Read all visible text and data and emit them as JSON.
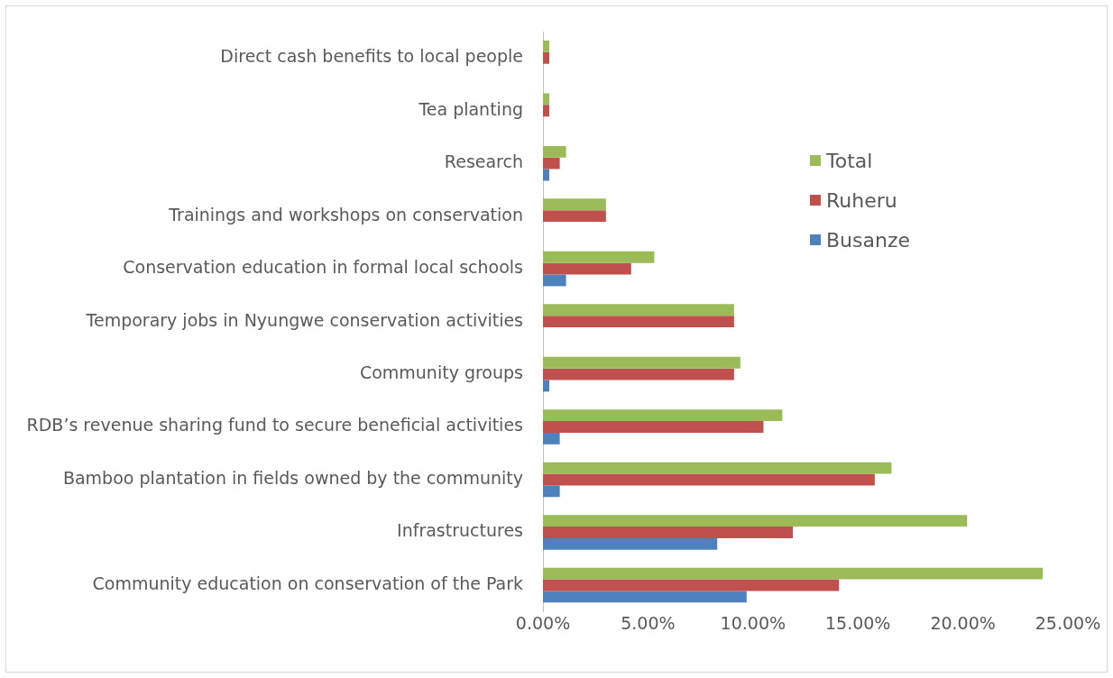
{
  "chart_data": {
    "type": "bar",
    "orientation": "horizontal",
    "categories": [
      "Direct cash benefits to local people",
      "Tea planting",
      "Research",
      "Trainings and workshops on conservation",
      "Conservation education in formal local schools",
      "Temporary jobs in Nyungwe conservation activities",
      "Community groups",
      "RDB’s revenue sharing fund to secure beneficial activities",
      "Bamboo plantation in fields owned by the community",
      "Infrastructures",
      "Community education on conservation of the Park"
    ],
    "series": [
      {
        "name": "Total",
        "color": "#9bbb59",
        "values": [
          0.3,
          0.3,
          1.1,
          3.0,
          5.3,
          9.1,
          9.4,
          11.4,
          16.6,
          20.2,
          23.8
        ]
      },
      {
        "name": "Ruheru",
        "color": "#c0504d",
        "values": [
          0.3,
          0.3,
          0.8,
          3.0,
          4.2,
          9.1,
          9.1,
          10.5,
          15.8,
          11.9,
          14.1
        ]
      },
      {
        "name": "Busanze",
        "color": "#4f81bd",
        "values": [
          0,
          0,
          0.3,
          0,
          1.1,
          0,
          0.3,
          0.8,
          0.8,
          8.3,
          9.7
        ]
      }
    ],
    "xlim": [
      0,
      25
    ],
    "xticks": [
      {
        "value": 0,
        "label": "0.00%"
      },
      {
        "value": 5,
        "label": "5.00%"
      },
      {
        "value": 10,
        "label": "10.00%"
      },
      {
        "value": 15,
        "label": "15.00%"
      },
      {
        "value": 20,
        "label": "20.00%"
      },
      {
        "value": 25,
        "label": "25.00%"
      }
    ],
    "grid": false,
    "legend": "right"
  }
}
